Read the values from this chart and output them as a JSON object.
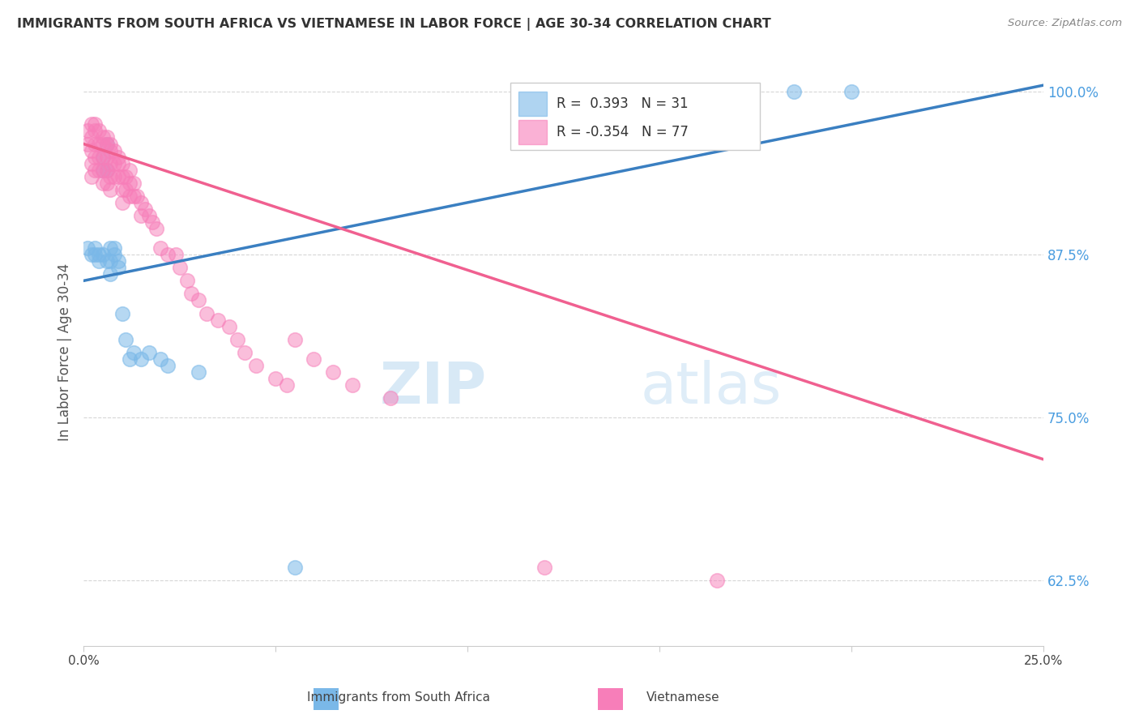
{
  "title": "IMMIGRANTS FROM SOUTH AFRICA VS VIETNAMESE IN LABOR FORCE | AGE 30-34 CORRELATION CHART",
  "source": "Source: ZipAtlas.com",
  "ylabel": "In Labor Force | Age 30-34",
  "x_ticks": [
    0.0,
    0.05,
    0.1,
    0.15,
    0.2,
    0.25
  ],
  "y_ticks": [
    0.625,
    0.75,
    0.875,
    1.0
  ],
  "y_tick_labels": [
    "62.5%",
    "75.0%",
    "87.5%",
    "100.0%"
  ],
  "x_tick_labels_show": [
    "0.0%",
    "25.0%"
  ],
  "xlim": [
    0.0,
    0.25
  ],
  "ylim": [
    0.575,
    1.025
  ],
  "legend_r_blue_val": "0.393",
  "legend_n_blue_val": "31",
  "legend_r_pink_val": "-0.354",
  "legend_n_pink_val": "77",
  "blue_scatter_color": "#7ab8e8",
  "pink_scatter_color": "#f77eb9",
  "blue_line_color": "#3a7fc1",
  "pink_line_color": "#f06090",
  "watermark_zip": "ZIP",
  "watermark_atlas": "atlas",
  "blue_scatter_x": [
    0.001,
    0.002,
    0.003,
    0.003,
    0.004,
    0.004,
    0.005,
    0.005,
    0.005,
    0.006,
    0.006,
    0.006,
    0.007,
    0.007,
    0.007,
    0.008,
    0.008,
    0.009,
    0.009,
    0.01,
    0.011,
    0.012,
    0.013,
    0.015,
    0.017,
    0.02,
    0.022,
    0.03,
    0.055,
    0.185,
    0.2
  ],
  "blue_scatter_y": [
    0.88,
    0.875,
    0.88,
    0.875,
    0.875,
    0.87,
    0.95,
    0.94,
    0.875,
    0.96,
    0.94,
    0.87,
    0.88,
    0.87,
    0.86,
    0.88,
    0.875,
    0.87,
    0.865,
    0.83,
    0.81,
    0.795,
    0.8,
    0.795,
    0.8,
    0.795,
    0.79,
    0.785,
    0.635,
    1.0,
    1.0
  ],
  "pink_scatter_x": [
    0.001,
    0.001,
    0.002,
    0.002,
    0.002,
    0.002,
    0.002,
    0.003,
    0.003,
    0.003,
    0.003,
    0.003,
    0.004,
    0.004,
    0.004,
    0.004,
    0.005,
    0.005,
    0.005,
    0.005,
    0.005,
    0.006,
    0.006,
    0.006,
    0.006,
    0.006,
    0.007,
    0.007,
    0.007,
    0.007,
    0.007,
    0.008,
    0.008,
    0.008,
    0.009,
    0.009,
    0.009,
    0.01,
    0.01,
    0.01,
    0.01,
    0.011,
    0.011,
    0.012,
    0.012,
    0.012,
    0.013,
    0.013,
    0.014,
    0.015,
    0.015,
    0.016,
    0.017,
    0.018,
    0.019,
    0.02,
    0.022,
    0.024,
    0.025,
    0.027,
    0.028,
    0.03,
    0.032,
    0.035,
    0.038,
    0.04,
    0.042,
    0.045,
    0.05,
    0.053,
    0.055,
    0.06,
    0.065,
    0.07,
    0.08,
    0.12,
    0.165
  ],
  "pink_scatter_y": [
    0.97,
    0.96,
    0.975,
    0.965,
    0.955,
    0.945,
    0.935,
    0.975,
    0.97,
    0.96,
    0.95,
    0.94,
    0.97,
    0.96,
    0.95,
    0.94,
    0.965,
    0.96,
    0.95,
    0.94,
    0.93,
    0.965,
    0.96,
    0.95,
    0.94,
    0.93,
    0.96,
    0.955,
    0.945,
    0.935,
    0.925,
    0.955,
    0.945,
    0.935,
    0.95,
    0.945,
    0.935,
    0.945,
    0.935,
    0.925,
    0.915,
    0.935,
    0.925,
    0.94,
    0.93,
    0.92,
    0.93,
    0.92,
    0.92,
    0.915,
    0.905,
    0.91,
    0.905,
    0.9,
    0.895,
    0.88,
    0.875,
    0.875,
    0.865,
    0.855,
    0.845,
    0.84,
    0.83,
    0.825,
    0.82,
    0.81,
    0.8,
    0.79,
    0.78,
    0.775,
    0.81,
    0.795,
    0.785,
    0.775,
    0.765,
    0.635,
    0.625
  ],
  "blue_trend_x0": 0.0,
  "blue_trend_x1": 0.25,
  "blue_trend_y0": 0.855,
  "blue_trend_y1": 1.005,
  "pink_trend_x0": 0.0,
  "pink_trend_x1": 0.25,
  "pink_trend_y0": 0.96,
  "pink_trend_y1": 0.718
}
